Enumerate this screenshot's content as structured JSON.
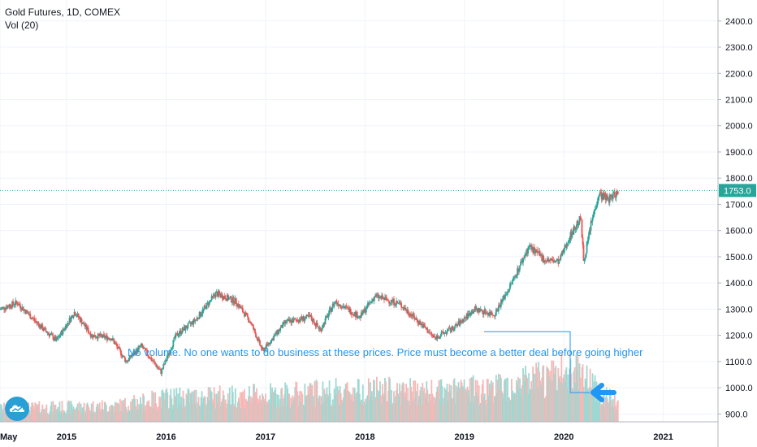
{
  "header": {
    "title": "Gold Futures, 1D, COMEX",
    "volume_label": "Vol (20)"
  },
  "colors": {
    "up": "#26a69a",
    "down": "#ef5350",
    "annotation": "#2196f3",
    "last_price": "#26a69a",
    "grid": "#f0f3fa"
  },
  "chart_data": {
    "type": "candlestick",
    "title": "Gold Futures, 1D, COMEX",
    "yaxis": {
      "ticks": [
        "900.0",
        "1000.0",
        "1100.0",
        "1200.0",
        "1300.0",
        "1400.0",
        "1500.0",
        "1600.0",
        "1700.0",
        "1800.0",
        "1900.0",
        "2000.0",
        "2100.0",
        "2200.0",
        "2300.0",
        "2400.0"
      ],
      "range": [
        870,
        2480
      ]
    },
    "xaxis": {
      "ticks": [
        "May",
        "2015",
        "2016",
        "2017",
        "2018",
        "2019",
        "2020",
        "2021"
      ],
      "range": [
        2014.33,
        2021.55
      ]
    },
    "last_price": 1753.0,
    "last_price_label": "1753.0",
    "price_path": [
      {
        "t": 2014.33,
        "p": 1300
      },
      {
        "t": 2014.5,
        "p": 1325
      },
      {
        "t": 2014.75,
        "p": 1230
      },
      {
        "t": 2014.9,
        "p": 1180
      },
      {
        "t": 2015.08,
        "p": 1290
      },
      {
        "t": 2015.25,
        "p": 1200
      },
      {
        "t": 2015.45,
        "p": 1190
      },
      {
        "t": 2015.6,
        "p": 1100
      },
      {
        "t": 2015.75,
        "p": 1160
      },
      {
        "t": 2015.95,
        "p": 1060
      },
      {
        "t": 2016.1,
        "p": 1200
      },
      {
        "t": 2016.3,
        "p": 1260
      },
      {
        "t": 2016.5,
        "p": 1360
      },
      {
        "t": 2016.7,
        "p": 1330
      },
      {
        "t": 2016.85,
        "p": 1250
      },
      {
        "t": 2016.97,
        "p": 1140
      },
      {
        "t": 2017.2,
        "p": 1250
      },
      {
        "t": 2017.45,
        "p": 1270
      },
      {
        "t": 2017.55,
        "p": 1220
      },
      {
        "t": 2017.7,
        "p": 1330
      },
      {
        "t": 2017.95,
        "p": 1270
      },
      {
        "t": 2018.1,
        "p": 1350
      },
      {
        "t": 2018.35,
        "p": 1320
      },
      {
        "t": 2018.6,
        "p": 1230
      },
      {
        "t": 2018.7,
        "p": 1190
      },
      {
        "t": 2018.9,
        "p": 1230
      },
      {
        "t": 2019.1,
        "p": 1300
      },
      {
        "t": 2019.3,
        "p": 1280
      },
      {
        "t": 2019.45,
        "p": 1380
      },
      {
        "t": 2019.65,
        "p": 1540
      },
      {
        "t": 2019.8,
        "p": 1490
      },
      {
        "t": 2019.95,
        "p": 1480
      },
      {
        "t": 2020.05,
        "p": 1570
      },
      {
        "t": 2020.17,
        "p": 1650
      },
      {
        "t": 2020.2,
        "p": 1480
      },
      {
        "t": 2020.27,
        "p": 1620
      },
      {
        "t": 2020.35,
        "p": 1740
      },
      {
        "t": 2020.45,
        "p": 1720
      },
      {
        "t": 2020.55,
        "p": 1750
      }
    ],
    "volume_envelope": [
      {
        "t": 2014.33,
        "v": 0.25
      },
      {
        "t": 2015.5,
        "v": 0.3
      },
      {
        "t": 2016.0,
        "v": 0.45
      },
      {
        "t": 2017.0,
        "v": 0.5
      },
      {
        "t": 2018.0,
        "v": 0.6
      },
      {
        "t": 2018.7,
        "v": 0.55
      },
      {
        "t": 2019.3,
        "v": 0.65
      },
      {
        "t": 2019.8,
        "v": 0.8
      },
      {
        "t": 2020.15,
        "v": 1.0
      },
      {
        "t": 2020.4,
        "v": 0.5
      },
      {
        "t": 2020.55,
        "v": 0.35
      }
    ],
    "annotation": {
      "text": "No volume. No one wants to do business at these prices. Price must become a better deal before going higher"
    }
  }
}
